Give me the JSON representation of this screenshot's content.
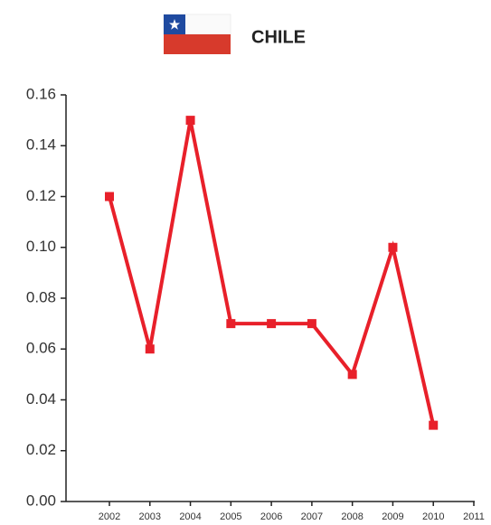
{
  "chart_data": {
    "type": "line",
    "title": "CHILE",
    "categories": [
      "2002",
      "2003",
      "2004",
      "2005",
      "2006",
      "2007",
      "2008",
      "2009",
      "2010",
      "2011"
    ],
    "series": [
      {
        "name": "Chile",
        "color": "#e8202a",
        "values": [
          0.12,
          0.06,
          0.15,
          0.07,
          0.07,
          0.07,
          0.05,
          0.1,
          0.03,
          null
        ]
      }
    ],
    "ylim": [
      0,
      0.16
    ],
    "yticks": [
      {
        "value": 0,
        "label": "0.00"
      },
      0.02,
      0.04,
      0.06,
      0.08,
      {
        "value": 0.1,
        "label": "0.10"
      },
      0.12,
      0.14,
      0.16
    ],
    "grid": false
  }
}
